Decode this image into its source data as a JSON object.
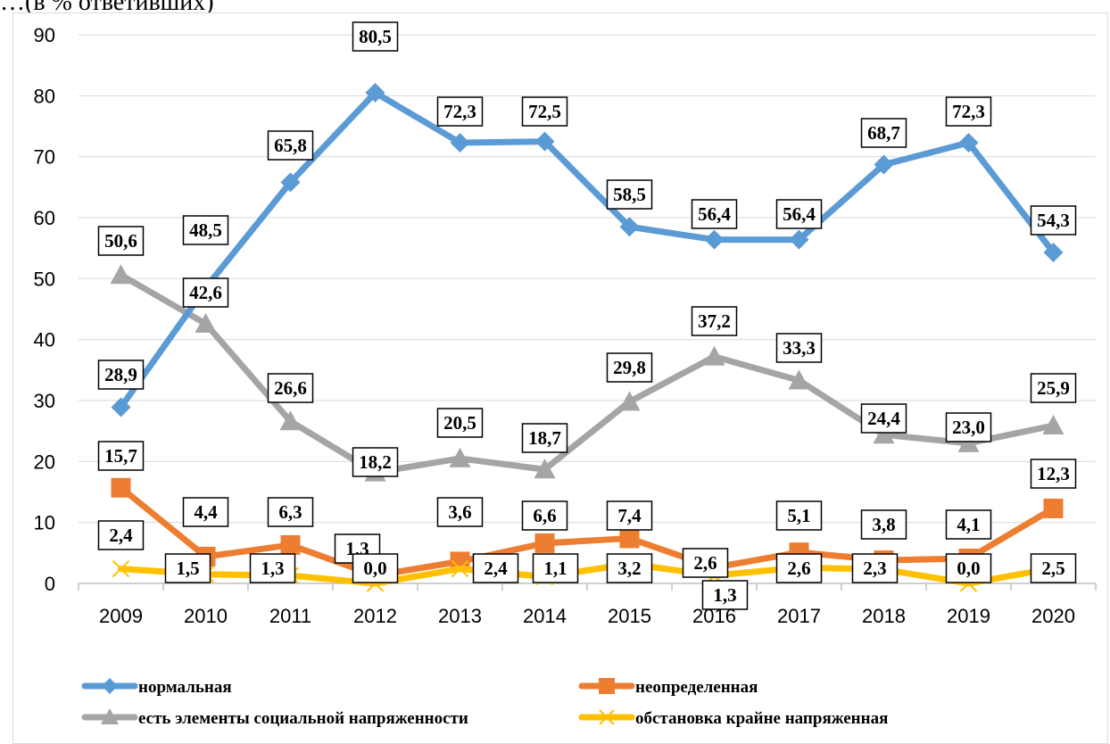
{
  "header_fragment": "…(в % ответивших)",
  "chart_data": {
    "type": "line",
    "title": "",
    "xlabel": "",
    "ylabel": "",
    "ylim": [
      0,
      90
    ],
    "yticks": [
      "0",
      "10",
      "20",
      "30",
      "40",
      "50",
      "60",
      "70",
      "80",
      "90"
    ],
    "categories": [
      "2009",
      "2010",
      "2011",
      "2012",
      "2013",
      "2014",
      "2015",
      "2016",
      "2017",
      "2018",
      "2019",
      "2020"
    ],
    "grid": "horizontal",
    "legend_position": "bottom",
    "series": [
      {
        "name": "нормальная",
        "color": "#5b9bd5",
        "marker": "diamond",
        "values": [
          28.9,
          48.5,
          65.8,
          80.5,
          72.3,
          72.5,
          58.5,
          56.4,
          56.4,
          68.7,
          72.3,
          54.3
        ],
        "labels": [
          "28,9",
          "48,5",
          "65,8",
          "80,5",
          "72,3",
          "72,5",
          "58,5",
          "56,4",
          "56,4",
          "68,7",
          "72,3",
          "54,3"
        ]
      },
      {
        "name": "неопределенная",
        "color": "#ed7d31",
        "marker": "square",
        "values": [
          15.7,
          4.4,
          6.3,
          1.3,
          3.6,
          6.6,
          7.4,
          2.6,
          5.1,
          3.8,
          4.1,
          12.3
        ],
        "labels": [
          "15,7",
          "4,4",
          "6,3",
          "1,3",
          "3,6",
          "6,6",
          "7,4",
          "2,6",
          "5,1",
          "3,8",
          "4,1",
          "12,3"
        ]
      },
      {
        "name": "есть элементы социальной напряженности",
        "color": "#a5a5a5",
        "marker": "triangle",
        "values": [
          50.6,
          42.6,
          26.6,
          18.2,
          20.5,
          18.7,
          29.8,
          37.2,
          33.3,
          24.4,
          23.0,
          25.9
        ],
        "labels": [
          "50,6",
          "42,6",
          "26,6",
          "18,2",
          "20,5",
          "18,7",
          "29,8",
          "37,2",
          "33,3",
          "24,4",
          "23,0",
          "25,9"
        ]
      },
      {
        "name": "обстановка крайне напряженная",
        "color": "#ffc000",
        "marker": "x",
        "values": [
          2.4,
          1.5,
          1.3,
          0.0,
          2.4,
          1.1,
          3.2,
          1.3,
          2.6,
          2.3,
          0.0,
          2.5
        ],
        "labels": [
          "2,4",
          "1,5",
          "1,3",
          "0,0",
          "2,4",
          "1,1",
          "3,2",
          "1,3",
          "2,6",
          "2,3",
          "0,0",
          "2,5"
        ]
      }
    ]
  }
}
